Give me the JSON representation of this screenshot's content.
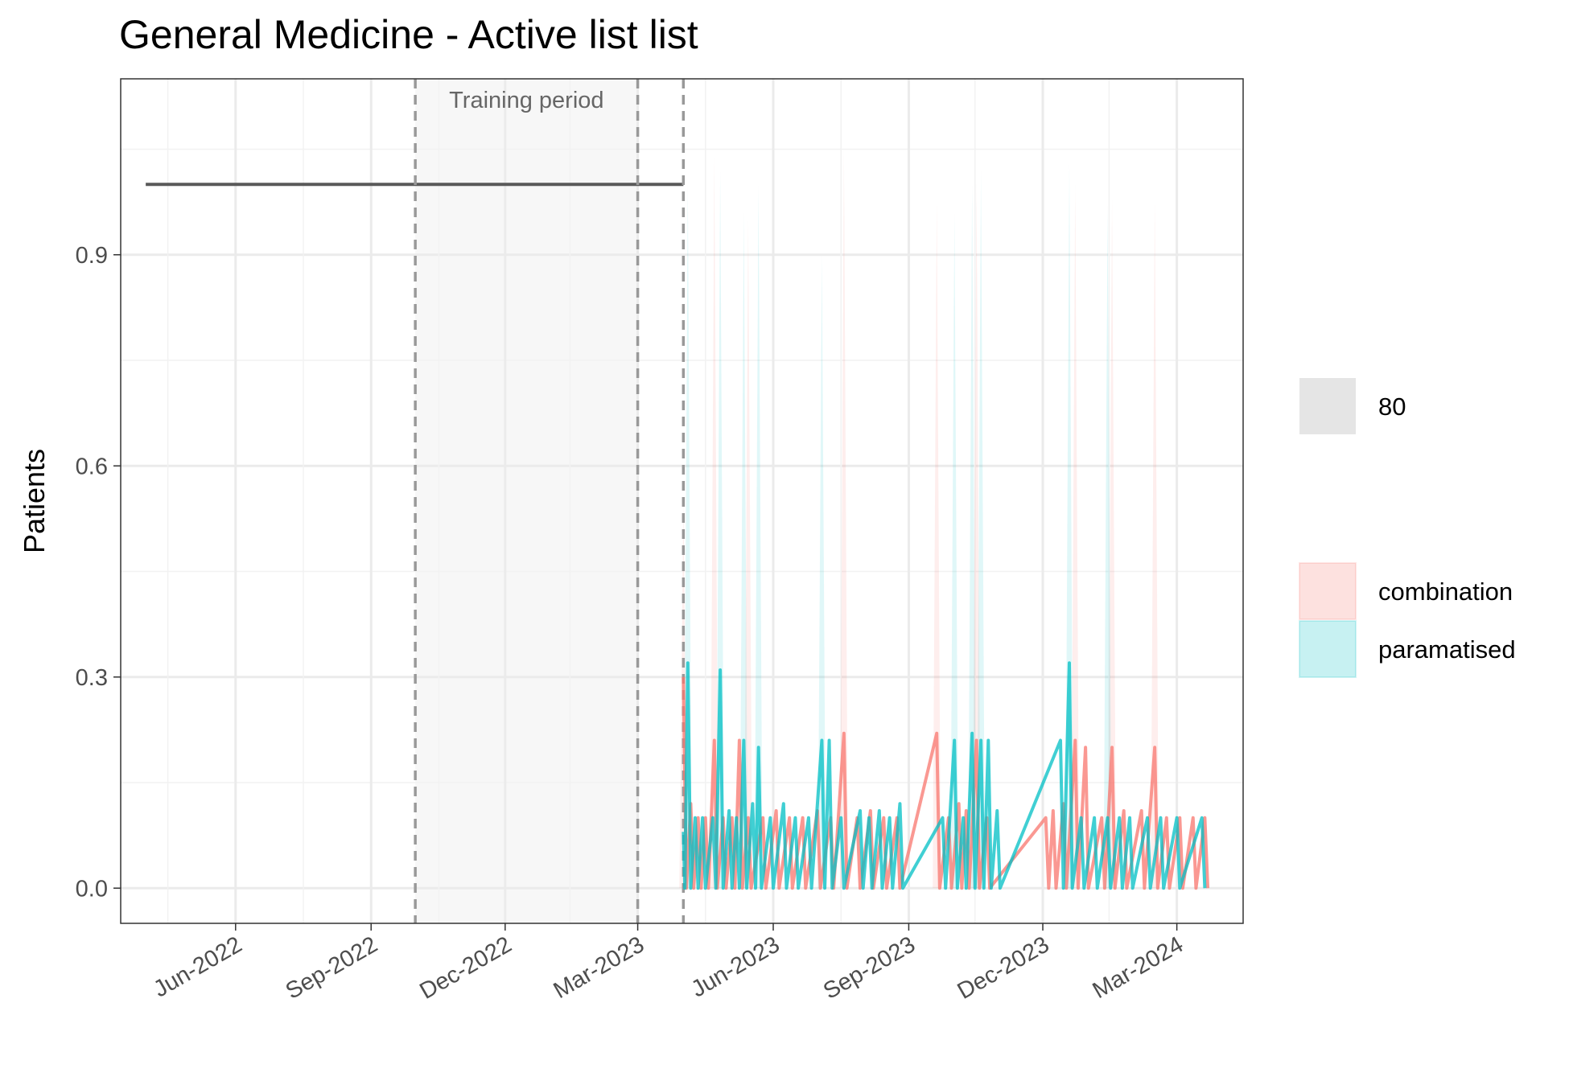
{
  "chart_data": {
    "type": "line",
    "title": "General Medicine - Active list list",
    "xlabel": "",
    "ylabel": "Patients",
    "x_axis": {
      "type": "date",
      "range": [
        "2022-03-15",
        "2024-04-15"
      ],
      "ticks": [
        {
          "date": "2022-06-01",
          "label": "Jun-2022"
        },
        {
          "date": "2022-09-01",
          "label": "Sep-2022"
        },
        {
          "date": "2022-12-01",
          "label": "Dec-2022"
        },
        {
          "date": "2023-03-01",
          "label": "Mar-2023"
        },
        {
          "date": "2023-06-01",
          "label": "Jun-2023"
        },
        {
          "date": "2023-09-01",
          "label": "Sep-2023"
        },
        {
          "date": "2023-12-01",
          "label": "Dec-2023"
        },
        {
          "date": "2024-03-01",
          "label": "Mar-2024"
        }
      ]
    },
    "y_axis": {
      "range": [
        -0.05,
        1.15
      ],
      "ticks": [
        {
          "value": 0.0,
          "label": "0.0"
        },
        {
          "value": 0.3,
          "label": "0.3"
        },
        {
          "value": 0.6,
          "label": "0.6"
        },
        {
          "value": 0.9,
          "label": "0.9"
        }
      ]
    },
    "grid": true,
    "legend_position": "right",
    "annotations": [
      {
        "text": "Training period",
        "start": "2022-10-01",
        "end": "2023-03-01"
      }
    ],
    "reference_lines": [
      {
        "date": "2022-10-01",
        "style": "dashed"
      },
      {
        "date": "2023-03-01",
        "style": "dashed"
      },
      {
        "date": "2023-04-01",
        "style": "dashed"
      }
    ],
    "historical_series": {
      "color": "#595959",
      "points": [
        [
          "2022-04-01",
          1.0
        ],
        [
          "2023-04-01",
          1.0
        ]
      ]
    },
    "legend": {
      "fill_group": {
        "label": "80",
        "color": "#e5e5e5"
      },
      "series_group": [
        {
          "name": "combination",
          "color": "#F8766D"
        },
        {
          "name": "paramatised",
          "color": "#00BFC4"
        }
      ]
    },
    "series": [
      {
        "name": "combination",
        "color": "#F8766D",
        "points": [
          [
            "2023-04-01",
            0.3
          ],
          [
            "2023-04-03",
            0
          ],
          [
            "2023-04-06",
            0.12
          ],
          [
            "2023-04-08",
            0
          ],
          [
            "2023-04-11",
            0.1
          ],
          [
            "2023-04-13",
            0
          ],
          [
            "2023-04-16",
            0.1
          ],
          [
            "2023-04-18",
            0
          ],
          [
            "2023-04-22",
            0.21
          ],
          [
            "2023-04-24",
            0
          ],
          [
            "2023-04-28",
            0.1
          ],
          [
            "2023-04-30",
            0
          ],
          [
            "2023-05-04",
            0.1
          ],
          [
            "2023-05-06",
            0
          ],
          [
            "2023-05-09",
            0.21
          ],
          [
            "2023-05-11",
            0
          ],
          [
            "2023-05-15",
            0.1
          ],
          [
            "2023-05-17",
            0
          ],
          [
            "2023-05-25",
            0.1
          ],
          [
            "2023-05-27",
            0
          ],
          [
            "2023-06-03",
            0.11
          ],
          [
            "2023-06-05",
            0
          ],
          [
            "2023-06-12",
            0.1
          ],
          [
            "2023-06-14",
            0
          ],
          [
            "2023-06-21",
            0.1
          ],
          [
            "2023-06-23",
            0
          ],
          [
            "2023-07-01",
            0.11
          ],
          [
            "2023-07-03",
            0
          ],
          [
            "2023-07-10",
            0.1
          ],
          [
            "2023-07-12",
            0
          ],
          [
            "2023-07-19",
            0.22
          ],
          [
            "2023-07-21",
            0
          ],
          [
            "2023-07-28",
            0.1
          ],
          [
            "2023-07-30",
            0
          ],
          [
            "2023-08-06",
            0.11
          ],
          [
            "2023-08-08",
            0
          ],
          [
            "2023-08-15",
            0.1
          ],
          [
            "2023-08-17",
            0
          ],
          [
            "2023-08-24",
            0.1
          ],
          [
            "2023-08-26",
            0
          ],
          [
            "2023-09-20",
            0.22
          ],
          [
            "2023-09-22",
            0
          ],
          [
            "2023-09-28",
            0.1
          ],
          [
            "2023-09-30",
            0
          ],
          [
            "2023-10-05",
            0.12
          ],
          [
            "2023-10-07",
            0
          ],
          [
            "2023-10-10",
            0.11
          ],
          [
            "2023-10-12",
            0
          ],
          [
            "2023-10-17",
            0.21
          ],
          [
            "2023-10-19",
            0
          ],
          [
            "2023-10-24",
            0.1
          ],
          [
            "2023-10-26",
            0
          ],
          [
            "2023-12-03",
            0.1
          ],
          [
            "2023-12-05",
            0
          ],
          [
            "2023-12-08",
            0.11
          ],
          [
            "2023-12-10",
            0
          ],
          [
            "2023-12-15",
            0.12
          ],
          [
            "2023-12-17",
            0
          ],
          [
            "2023-12-23",
            0.21
          ],
          [
            "2023-12-25",
            0
          ],
          [
            "2023-12-30",
            0.2
          ],
          [
            "2024-01-01",
            0
          ],
          [
            "2024-01-10",
            0.1
          ],
          [
            "2024-01-12",
            0
          ],
          [
            "2024-01-17",
            0.2
          ],
          [
            "2024-01-19",
            0
          ],
          [
            "2024-01-25",
            0.11
          ],
          [
            "2024-01-27",
            0
          ],
          [
            "2024-02-06",
            0.11
          ],
          [
            "2024-02-08",
            0
          ],
          [
            "2024-02-15",
            0.2
          ],
          [
            "2024-02-17",
            0
          ],
          [
            "2024-02-23",
            0.1
          ],
          [
            "2024-02-25",
            0
          ],
          [
            "2024-03-03",
            0.1
          ],
          [
            "2024-03-05",
            0
          ],
          [
            "2024-03-12",
            0.1
          ],
          [
            "2024-03-14",
            0
          ],
          [
            "2024-03-20",
            0.1
          ],
          [
            "2024-03-22",
            0
          ]
        ]
      },
      {
        "name": "paramatised",
        "color": "#00BFC4",
        "points": [
          [
            "2023-04-01",
            0.08
          ],
          [
            "2023-04-02",
            0
          ],
          [
            "2023-04-04",
            0.32
          ],
          [
            "2023-04-06",
            0
          ],
          [
            "2023-04-09",
            0.1
          ],
          [
            "2023-04-11",
            0
          ],
          [
            "2023-04-14",
            0.1
          ],
          [
            "2023-04-16",
            0
          ],
          [
            "2023-04-21",
            0.1
          ],
          [
            "2023-04-23",
            0
          ],
          [
            "2023-04-26",
            0.31
          ],
          [
            "2023-04-28",
            0
          ],
          [
            "2023-05-02",
            0.11
          ],
          [
            "2023-05-04",
            0
          ],
          [
            "2023-05-07",
            0.1
          ],
          [
            "2023-05-09",
            0
          ],
          [
            "2023-05-12",
            0.21
          ],
          [
            "2023-05-14",
            0
          ],
          [
            "2023-05-18",
            0.12
          ],
          [
            "2023-05-20",
            0
          ],
          [
            "2023-05-22",
            0.2
          ],
          [
            "2023-05-24",
            0
          ],
          [
            "2023-05-30",
            0.1
          ],
          [
            "2023-06-01",
            0
          ],
          [
            "2023-06-08",
            0.12
          ],
          [
            "2023-06-10",
            0
          ],
          [
            "2023-06-16",
            0.1
          ],
          [
            "2023-06-18",
            0
          ],
          [
            "2023-06-25",
            0.1
          ],
          [
            "2023-06-27",
            0
          ],
          [
            "2023-07-04",
            0.21
          ],
          [
            "2023-07-06",
            0
          ],
          [
            "2023-07-09",
            0.21
          ],
          [
            "2023-07-11",
            0
          ],
          [
            "2023-07-17",
            0.1
          ],
          [
            "2023-07-19",
            0
          ],
          [
            "2023-07-30",
            0.11
          ],
          [
            "2023-08-01",
            0
          ],
          [
            "2023-08-05",
            0.1
          ],
          [
            "2023-08-07",
            0
          ],
          [
            "2023-08-12",
            0.11
          ],
          [
            "2023-08-14",
            0
          ],
          [
            "2023-08-19",
            0.1
          ],
          [
            "2023-08-21",
            0
          ],
          [
            "2023-08-26",
            0.12
          ],
          [
            "2023-08-28",
            0
          ],
          [
            "2023-09-24",
            0.1
          ],
          [
            "2023-09-26",
            0
          ],
          [
            "2023-10-02",
            0.21
          ],
          [
            "2023-10-04",
            0
          ],
          [
            "2023-10-08",
            0.1
          ],
          [
            "2023-10-10",
            0
          ],
          [
            "2023-10-14",
            0.22
          ],
          [
            "2023-10-16",
            0
          ],
          [
            "2023-10-20",
            0.21
          ],
          [
            "2023-10-22",
            0
          ],
          [
            "2023-10-25",
            0.21
          ],
          [
            "2023-10-27",
            0
          ],
          [
            "2023-10-31",
            0.11
          ],
          [
            "2023-11-02",
            0
          ],
          [
            "2023-12-13",
            0.21
          ],
          [
            "2023-12-15",
            0
          ],
          [
            "2023-12-19",
            0.32
          ],
          [
            "2023-12-21",
            0
          ],
          [
            "2023-12-27",
            0.1
          ],
          [
            "2023-12-29",
            0
          ],
          [
            "2024-01-05",
            0.1
          ],
          [
            "2024-01-07",
            0
          ],
          [
            "2024-01-14",
            0.1
          ],
          [
            "2024-01-16",
            0
          ],
          [
            "2024-01-22",
            0.1
          ],
          [
            "2024-01-24",
            0
          ],
          [
            "2024-01-29",
            0.1
          ],
          [
            "2024-01-31",
            0
          ],
          [
            "2024-02-10",
            0.1
          ],
          [
            "2024-02-12",
            0
          ],
          [
            "2024-02-19",
            0.1
          ],
          [
            "2024-02-21",
            0
          ],
          [
            "2024-03-01",
            0.1
          ],
          [
            "2024-03-03",
            0
          ],
          [
            "2024-03-18",
            0.1
          ],
          [
            "2024-03-20",
            0
          ]
        ]
      }
    ],
    "confidence_bands": [
      {
        "series": "combination",
        "color": "#F8766D",
        "peaks": [
          [
            "2023-04-01",
            0.55
          ],
          [
            "2023-04-22",
            1.04
          ],
          [
            "2023-05-15",
            0.95
          ],
          [
            "2023-07-19",
            1.05
          ],
          [
            "2023-09-20",
            0.98
          ],
          [
            "2023-10-17",
            1.0
          ],
          [
            "2023-12-23",
            1.0
          ],
          [
            "2024-01-17",
            0.98
          ],
          [
            "2024-02-15",
            0.98
          ]
        ]
      },
      {
        "series": "paramatised",
        "color": "#00BFC4",
        "peaks": [
          [
            "2023-04-04",
            1.0
          ],
          [
            "2023-04-26",
            1.02
          ],
          [
            "2023-05-12",
            0.96
          ],
          [
            "2023-05-22",
            1.0
          ],
          [
            "2023-07-04",
            0.9
          ],
          [
            "2023-10-02",
            0.96
          ],
          [
            "2023-10-14",
            1.0
          ],
          [
            "2023-10-20",
            1.02
          ],
          [
            "2023-12-19",
            1.03
          ],
          [
            "2024-01-14",
            0.97
          ]
        ]
      }
    ]
  }
}
